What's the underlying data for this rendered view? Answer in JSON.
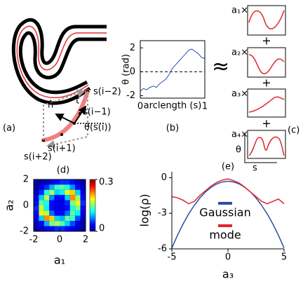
{
  "diagram": {
    "panel_a": {
      "label": "(a)",
      "points": [
        "s(i−2)",
        "s(i−1)",
        "s(i+1)",
        "s(i+2)"
      ],
      "normal": "n̂",
      "tangent": "t̂",
      "angle": "θ(s(i))"
    },
    "panel_c": {
      "label": "(c)",
      "approx": "≈",
      "terms": [
        "a₁×",
        "a₂×",
        "a₃×",
        "a₄×"
      ],
      "plus": "+",
      "ylabel": "θ",
      "xlabel": "s"
    }
  },
  "chart_data": [
    {
      "type": "line",
      "title": "(b)",
      "xlabel": "arclength (s)",
      "ylabel": "θ (rad)",
      "x": [
        0,
        0.05,
        0.1,
        0.15,
        0.2,
        0.25,
        0.3,
        0.35,
        0.4,
        0.45,
        0.5,
        0.55,
        0.6,
        0.65,
        0.7,
        0.75,
        0.8,
        0.85,
        0.9,
        0.95,
        1
      ],
      "values": [
        -1.6,
        -1.4,
        -1.5,
        -1.3,
        -1.2,
        -1.3,
        -1.0,
        -0.8,
        -0.6,
        -0.2,
        0.3,
        0.6,
        0.9,
        1.2,
        1.5,
        1.8,
        1.9,
        1.7,
        1.5,
        1.2,
        1.1
      ],
      "color": "#2a4fb0",
      "hline": 0,
      "xlim": [
        0,
        1
      ],
      "xticks": [
        0,
        1
      ],
      "ylim": [
        -2.2,
        2.6
      ],
      "yticks": [
        -2,
        0,
        2
      ]
    },
    {
      "type": "heatmap",
      "title": "(d)",
      "xlabel": "a₁",
      "ylabel": "a₂",
      "x": [
        -1.8,
        -1.4,
        -1.0,
        -0.6,
        -0.2,
        0.2,
        0.6,
        1.0,
        1.4,
        1.8
      ],
      "y": [
        1.8,
        1.4,
        1.0,
        0.6,
        0.2,
        -0.2,
        -0.6,
        -1.0,
        -1.4,
        -1.8
      ],
      "z": [
        [
          0.01,
          0.01,
          0.02,
          0.03,
          0.04,
          0.05,
          0.05,
          0.04,
          0.02,
          0.01
        ],
        [
          0.01,
          0.03,
          0.05,
          0.09,
          0.13,
          0.14,
          0.12,
          0.08,
          0.04,
          0.02
        ],
        [
          0.02,
          0.05,
          0.12,
          0.16,
          0.1,
          0.11,
          0.18,
          0.2,
          0.1,
          0.03
        ],
        [
          0.03,
          0.1,
          0.17,
          0.08,
          0.04,
          0.04,
          0.1,
          0.22,
          0.16,
          0.04
        ],
        [
          0.04,
          0.14,
          0.12,
          0.04,
          0.03,
          0.03,
          0.05,
          0.15,
          0.18,
          0.05
        ],
        [
          0.05,
          0.17,
          0.11,
          0.04,
          0.03,
          0.03,
          0.04,
          0.12,
          0.15,
          0.04
        ],
        [
          0.04,
          0.18,
          0.17,
          0.07,
          0.04,
          0.04,
          0.07,
          0.14,
          0.11,
          0.03
        ],
        [
          0.03,
          0.1,
          0.22,
          0.2,
          0.1,
          0.09,
          0.14,
          0.13,
          0.06,
          0.02
        ],
        [
          0.02,
          0.04,
          0.09,
          0.15,
          0.16,
          0.14,
          0.1,
          0.06,
          0.03,
          0.01
        ],
        [
          0.01,
          0.02,
          0.03,
          0.04,
          0.05,
          0.05,
          0.04,
          0.03,
          0.02,
          0.01
        ]
      ],
      "clim": [
        0,
        0.3
      ],
      "colorbar_ticks": [
        0,
        0.3
      ],
      "xlim": [
        -2,
        2
      ],
      "xticks": [
        -2,
        0,
        2
      ],
      "ylim": [
        -2,
        2
      ],
      "yticks": [
        -2,
        0,
        2
      ]
    },
    {
      "type": "line",
      "title": "(e)",
      "xlabel": "a₃",
      "ylabel": "log(ρ)",
      "legend": "center",
      "x": [
        -5,
        -4.5,
        -4,
        -3.5,
        -3,
        -2.5,
        -2,
        -1.5,
        -1,
        -0.5,
        0,
        0.5,
        1,
        1.5,
        2,
        2.5,
        3,
        3.5,
        4,
        4.5,
        5
      ],
      "series": [
        {
          "name": "Gaussian",
          "color": "#2b4fa8",
          "values": [
            -5.93,
            -4.86,
            -3.9,
            -3.06,
            -2.33,
            -1.71,
            -1.2,
            -0.81,
            -0.53,
            -0.36,
            -0.3,
            -0.36,
            -0.53,
            -0.81,
            -1.2,
            -1.71,
            -2.33,
            -3.06,
            -3.9,
            -4.86,
            -5.93
          ]
        },
        {
          "name": "mode",
          "color": "#e0262b",
          "values": [
            -1.6,
            -1.7,
            -1.9,
            -2.2,
            -2.0,
            -1.5,
            -1.1,
            -0.7,
            -0.4,
            -0.2,
            -0.1,
            -0.25,
            -0.45,
            -0.8,
            -1.2,
            -1.6,
            -2.0,
            -2.2,
            -2.0,
            -1.8,
            -2.2
          ]
        }
      ],
      "xlim": [
        -5,
        5
      ],
      "xticks": [
        -5,
        0,
        5
      ],
      "ylim": [
        -6,
        0.5
      ],
      "yticks": [
        -6,
        -3,
        0
      ]
    }
  ]
}
